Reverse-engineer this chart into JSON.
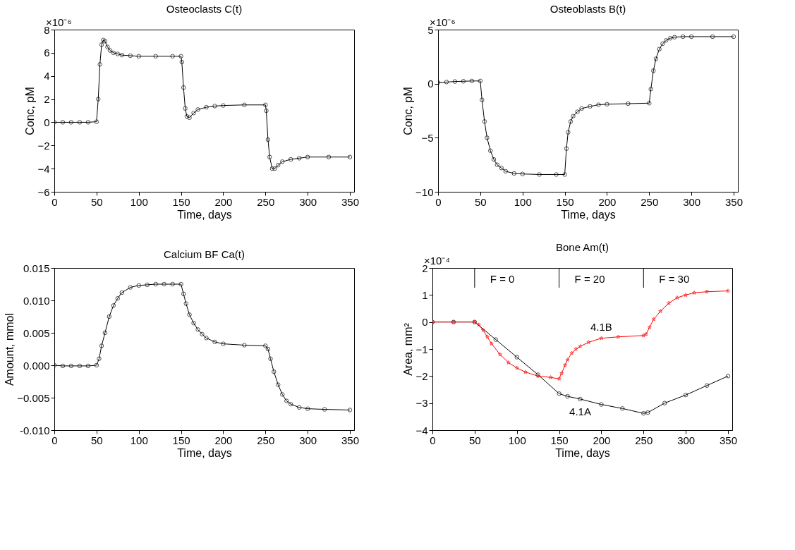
{
  "chart_data": [
    {
      "type": "line",
      "title": "Osteoclasts C(t)",
      "xlabel": "Time, days",
      "ylabel": "Conc, pM",
      "xlim": [
        0,
        355
      ],
      "xticks": [
        0,
        50,
        100,
        150,
        200,
        250,
        300,
        350
      ],
      "ylim": [
        -6,
        8
      ],
      "yticks": [
        -6,
        -4,
        -2,
        0,
        2,
        4,
        6,
        8
      ],
      "grid": false,
      "legend": false,
      "marker": "circle",
      "line_style": "solid",
      "annotations": [
        "×10⁻⁶"
      ],
      "series": [
        {
          "color": "#000000",
          "x": [
            0,
            10,
            20,
            30,
            40,
            50,
            52,
            54,
            56,
            58,
            60,
            63,
            66,
            70,
            75,
            80,
            90,
            100,
            120,
            140,
            150,
            151,
            153,
            155,
            157,
            160,
            165,
            170,
            180,
            190,
            200,
            225,
            250,
            251,
            253,
            255,
            258,
            261,
            265,
            270,
            280,
            290,
            300,
            325,
            350
          ],
          "values": [
            0,
            0,
            0,
            0,
            0,
            0.05,
            2,
            5,
            6.7,
            7.1,
            7.0,
            6.5,
            6.2,
            6.0,
            5.9,
            5.8,
            5.75,
            5.7,
            5.7,
            5.7,
            5.7,
            5.2,
            3,
            1.2,
            0.5,
            0.4,
            0.8,
            1.1,
            1.3,
            1.4,
            1.45,
            1.5,
            1.5,
            1,
            -1.5,
            -3,
            -4,
            -4.0,
            -3.7,
            -3.4,
            -3.2,
            -3.1,
            -3.0,
            -3.0,
            -3.0
          ]
        }
      ]
    },
    {
      "type": "line",
      "title": "Osteoblasts B(t)",
      "xlabel": "Time, days",
      "ylabel": "Conc, pM",
      "xlim": [
        0,
        355
      ],
      "xticks": [
        0,
        50,
        100,
        150,
        200,
        250,
        300,
        350
      ],
      "ylim": [
        -10,
        5
      ],
      "yticks": [
        -10,
        -5,
        0,
        5
      ],
      "grid": false,
      "legend": false,
      "marker": "circle",
      "line_style": "solid",
      "annotations": [
        "×10⁻⁶"
      ],
      "series": [
        {
          "color": "#000000",
          "x": [
            0,
            10,
            20,
            30,
            40,
            50,
            52,
            55,
            58,
            62,
            66,
            70,
            75,
            80,
            90,
            100,
            120,
            140,
            150,
            152,
            154,
            157,
            160,
            165,
            170,
            180,
            190,
            200,
            225,
            250,
            252,
            255,
            258,
            262,
            266,
            270,
            275,
            280,
            290,
            300,
            325,
            350
          ],
          "values": [
            0.1,
            0.15,
            0.2,
            0.22,
            0.25,
            0.25,
            -1.5,
            -3.5,
            -5,
            -6.2,
            -7,
            -7.5,
            -7.8,
            -8.1,
            -8.3,
            -8.35,
            -8.4,
            -8.4,
            -8.4,
            -6,
            -4.5,
            -3.5,
            -3,
            -2.6,
            -2.3,
            -2.1,
            -1.95,
            -1.9,
            -1.85,
            -1.8,
            -0.5,
            1.2,
            2.3,
            3.2,
            3.7,
            4.0,
            4.2,
            4.3,
            4.35,
            4.35,
            4.35,
            4.35
          ]
        }
      ]
    },
    {
      "type": "line",
      "title": "Calcium BF Ca(t)",
      "xlabel": "Time, days",
      "ylabel": "Amount, mmol",
      "xlim": [
        0,
        355
      ],
      "xticks": [
        0,
        50,
        100,
        150,
        200,
        250,
        300,
        350
      ],
      "ylim": [
        -0.01,
        0.015
      ],
      "yticks": [
        {
          "value": -0.01,
          "label": "-0.010"
        },
        -0.005,
        {
          "value": 0,
          "label": "0.000"
        },
        0.005,
        {
          "value": 0.01,
          "label": "0.010"
        },
        0.015
      ],
      "grid": false,
      "legend": false,
      "marker": "circle",
      "line_style": "solid",
      "series": [
        {
          "color": "#000000",
          "x": [
            0,
            10,
            20,
            30,
            40,
            50,
            53,
            56,
            60,
            65,
            70,
            75,
            80,
            90,
            100,
            110,
            120,
            130,
            140,
            150,
            153,
            156,
            160,
            165,
            170,
            175,
            180,
            190,
            200,
            225,
            250,
            253,
            256,
            260,
            265,
            270,
            275,
            280,
            290,
            300,
            320,
            350
          ],
          "values": [
            0,
            -0.0001,
            -0.0001,
            -0.0001,
            -0.0001,
            0,
            0.001,
            0.003,
            0.005,
            0.0075,
            0.0092,
            0.0103,
            0.0112,
            0.012,
            0.0123,
            0.0124,
            0.0125,
            0.0125,
            0.0125,
            0.0125,
            0.011,
            0.0095,
            0.0078,
            0.0065,
            0.0055,
            0.0048,
            0.0042,
            0.0036,
            0.0033,
            0.0031,
            0.003,
            0.0025,
            0.001,
            -0.001,
            -0.003,
            -0.0045,
            -0.0055,
            -0.006,
            -0.0065,
            -0.0067,
            -0.0068,
            -0.0069
          ]
        }
      ]
    },
    {
      "type": "line",
      "title": "Bone Am(t)",
      "xlabel": "Time, days",
      "ylabel": "Area, mm²",
      "xlim": [
        0,
        355
      ],
      "xticks": [
        0,
        50,
        100,
        150,
        200,
        250,
        300,
        350
      ],
      "ylim": [
        -4,
        2
      ],
      "yticks": [
        -4,
        -3,
        -2,
        -1,
        0,
        1,
        2
      ],
      "grid": false,
      "legend": false,
      "line_style": "solid",
      "ref_lines": [
        {
          "axis": "x",
          "value": 50
        },
        {
          "axis": "x",
          "value": 150
        },
        {
          "axis": "x",
          "value": 250
        }
      ],
      "annotations": [
        "×10⁻⁴",
        "F = 0",
        "F = 20",
        "F = 30",
        {
          "text": "4.1B",
          "x": 200,
          "y": -0.6
        },
        {
          "text": "4.1A",
          "x": 175,
          "y": -2.85
        }
      ],
      "series": [
        {
          "color": "#000000",
          "marker": "circle",
          "x": [
            0,
            25,
            50,
            75,
            100,
            125,
            150,
            160,
            175,
            200,
            225,
            250,
            255,
            275,
            300,
            325,
            350
          ],
          "values": [
            0,
            0,
            0,
            -0.65,
            -1.3,
            -1.95,
            -2.65,
            -2.75,
            -2.85,
            -3.05,
            -3.2,
            -3.38,
            -3.35,
            -3.0,
            -2.7,
            -2.35,
            -2.0
          ]
        },
        {
          "color": "#ff0000",
          "marker": "star",
          "x": [
            0,
            25,
            50,
            55,
            60,
            65,
            70,
            80,
            90,
            100,
            110,
            125,
            140,
            150,
            153,
            157,
            160,
            165,
            170,
            175,
            185,
            200,
            220,
            250,
            253,
            257,
            262,
            270,
            280,
            290,
            300,
            310,
            325,
            350
          ],
          "values": [
            0,
            0,
            0,
            -0.1,
            -0.3,
            -0.55,
            -0.8,
            -1.2,
            -1.5,
            -1.7,
            -1.85,
            -2.0,
            -2.05,
            -2.1,
            -1.9,
            -1.6,
            -1.4,
            -1.15,
            -1.0,
            -0.9,
            -0.75,
            -0.6,
            -0.55,
            -0.5,
            -0.45,
            -0.2,
            0.1,
            0.4,
            0.7,
            0.9,
            1.0,
            1.08,
            1.12,
            1.15
          ]
        }
      ]
    }
  ]
}
